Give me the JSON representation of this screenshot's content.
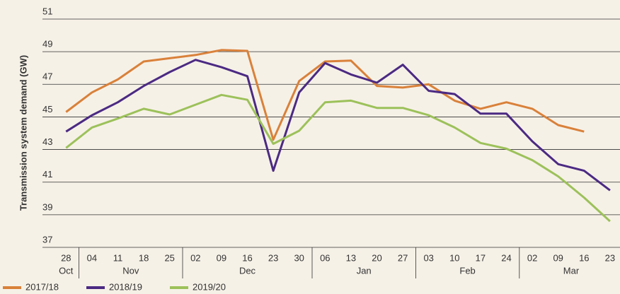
{
  "chart_data": {
    "type": "line",
    "y_label": "Transmission system demand (GW)",
    "categories": [
      {
        "day": "28",
        "month": "Oct"
      },
      {
        "day": "04",
        "month": "Nov"
      },
      {
        "day": "11",
        "month": "Nov"
      },
      {
        "day": "18",
        "month": "Nov"
      },
      {
        "day": "25",
        "month": "Nov"
      },
      {
        "day": "02",
        "month": "Dec"
      },
      {
        "day": "09",
        "month": "Dec"
      },
      {
        "day": "16",
        "month": "Dec"
      },
      {
        "day": "23",
        "month": "Dec"
      },
      {
        "day": "30",
        "month": "Dec"
      },
      {
        "day": "06",
        "month": "Jan"
      },
      {
        "day": "13",
        "month": "Jan"
      },
      {
        "day": "20",
        "month": "Jan"
      },
      {
        "day": "27",
        "month": "Jan"
      },
      {
        "day": "03",
        "month": "Feb"
      },
      {
        "day": "10",
        "month": "Feb"
      },
      {
        "day": "17",
        "month": "Feb"
      },
      {
        "day": "24",
        "month": "Feb"
      },
      {
        "day": "02",
        "month": "Mar"
      },
      {
        "day": "09",
        "month": "Mar"
      },
      {
        "day": "16",
        "month": "Mar"
      },
      {
        "day": "23",
        "month": "Mar"
      }
    ],
    "series": [
      {
        "name": "2017/18",
        "color": "#d9813a",
        "values": [
          45.3,
          46.5,
          47.3,
          48.4,
          48.6,
          48.8,
          49.1,
          49.05,
          43.6,
          47.2,
          48.4,
          48.45,
          46.9,
          46.8,
          47.0,
          46.0,
          45.5,
          45.9,
          45.5,
          44.5,
          44.1,
          null
        ]
      },
      {
        "name": "2018/19",
        "color": "#4b2a83",
        "values": [
          44.1,
          45.1,
          45.9,
          46.9,
          47.75,
          48.5,
          48.05,
          47.5,
          41.7,
          46.5,
          48.3,
          47.6,
          47.1,
          48.2,
          46.6,
          46.4,
          45.2,
          45.2,
          43.5,
          42.1,
          41.7,
          40.5
        ]
      },
      {
        "name": "2019/20",
        "color": "#9cc15a",
        "values": [
          43.1,
          44.35,
          44.9,
          45.5,
          45.15,
          45.75,
          46.35,
          46.05,
          43.35,
          44.15,
          45.9,
          46.0,
          45.55,
          45.55,
          45.1,
          44.35,
          43.4,
          43.05,
          42.35,
          41.35,
          40.05,
          38.6
        ]
      }
    ],
    "ylim": [
      37,
      51
    ],
    "yticks": [
      37,
      39,
      41,
      43,
      45,
      47,
      49,
      51
    ],
    "grid": true
  }
}
